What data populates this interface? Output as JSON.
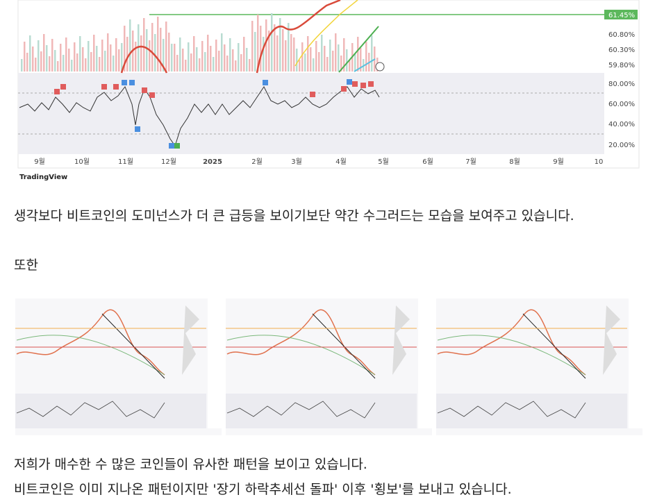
{
  "top_chart": {
    "price_labels": [
      "61.45%",
      "60.80%",
      "60.30%",
      "59.80%"
    ],
    "indicator_labels": [
      "80.00%",
      "60.00%",
      "40.00%",
      "20.00%"
    ],
    "time_labels": [
      "9월",
      "10월",
      "11월",
      "12월",
      "2025",
      "2월",
      "3월",
      "4월",
      "5월",
      "6월",
      "7월",
      "8월",
      "9월",
      "10"
    ],
    "brand": "TradingView"
  },
  "paragraphs": [
    "생각보다 비트코인의 도미넌스가 더 큰 급등을 보이기보단 약간 수그러드는 모습을 보여주고 있습니다.",
    "또한",
    "저희가 매수한 수 많은 코인들이 유사한 패턴을 보이고 있습니다.",
    "비트코인은 이미 지나온 패턴이지만 '장기 하락추세선 돌파' 이후 '횡보'를 보내고 있습니다."
  ]
}
